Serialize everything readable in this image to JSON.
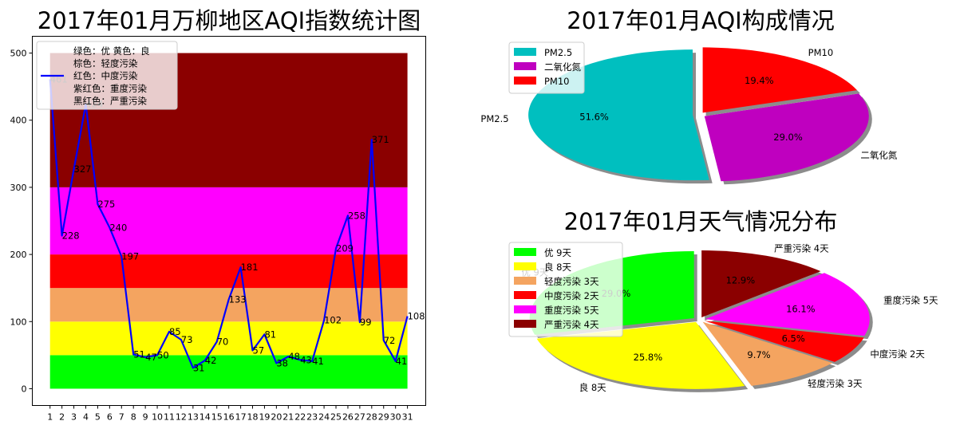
{
  "chart_data": [
    {
      "type": "line",
      "title": "2017年01月万柳地区AQI指数统计图",
      "x": [
        1,
        2,
        3,
        4,
        5,
        6,
        7,
        8,
        9,
        10,
        11,
        12,
        13,
        14,
        15,
        16,
        17,
        18,
        19,
        20,
        21,
        22,
        23,
        24,
        25,
        26,
        27,
        28,
        29,
        30,
        31
      ],
      "series": [
        {
          "values": [
            461,
            228,
            327,
            424,
            275,
            240,
            197,
            51,
            47,
            50,
            85,
            73,
            31,
            42,
            70,
            133,
            181,
            57,
            81,
            38,
            48,
            43,
            41,
            102,
            209,
            258,
            99,
            371,
            72,
            41,
            108
          ]
        }
      ],
      "ylim": [
        -25,
        525
      ],
      "yticks": [
        0,
        100,
        200,
        300,
        400,
        500
      ],
      "line_color": "#0000ff",
      "bands": [
        {
          "from": 0,
          "to": 50,
          "color": "#00ff00"
        },
        {
          "from": 50,
          "to": 100,
          "color": "#ffff00"
        },
        {
          "from": 100,
          "to": 150,
          "color": "#f4a460"
        },
        {
          "from": 150,
          "to": 200,
          "color": "#ff0000"
        },
        {
          "from": 200,
          "to": 300,
          "color": "#ff00ff"
        },
        {
          "from": 300,
          "to": 500,
          "color": "#8b0000"
        }
      ],
      "legend": {
        "position": "upper-left",
        "lines": [
          "绿色：优  黄色：良",
          "棕色：轻度污染",
          "红色：中度污染",
          "紫红色：重度污染",
          "黑红色：严重污染"
        ]
      }
    },
    {
      "type": "pie",
      "title": "2017年01月AQI构成情况",
      "labels": [
        "PM2.5",
        "二氧化氮",
        "PM10"
      ],
      "values": [
        51.6,
        29.0,
        19.4
      ],
      "pct_labels": [
        "51.6%",
        "29.0%",
        "19.4%"
      ],
      "colors": [
        "#00bfbf",
        "#bf00bf",
        "#ff0000"
      ],
      "legend": {
        "position": "upper-left",
        "entries": [
          "PM2.5",
          "二氧化氮",
          "PM10"
        ]
      }
    },
    {
      "type": "pie",
      "title": "2017年01月天气情况分布",
      "labels": [
        "优  9天",
        "良  8天",
        "轻度污染  3天",
        "中度污染  2天",
        "重度污染  5天",
        "严重污染  4天"
      ],
      "values": [
        29.0,
        25.8,
        9.7,
        6.5,
        16.1,
        12.9
      ],
      "pct_labels": [
        "29.0%",
        "25.8%",
        "9.7%",
        "6.5%",
        "16.1%",
        "12.9%"
      ],
      "colors": [
        "#00ff00",
        "#ffff00",
        "#f4a460",
        "#ff0000",
        "#ff00ff",
        "#8b0000"
      ],
      "legend": {
        "position": "upper-left",
        "entries": [
          "优  9天",
          "良  8天",
          "轻度污染  3天",
          "中度污染  2天",
          "重度污染  5天",
          "严重污染  4天"
        ]
      }
    }
  ]
}
